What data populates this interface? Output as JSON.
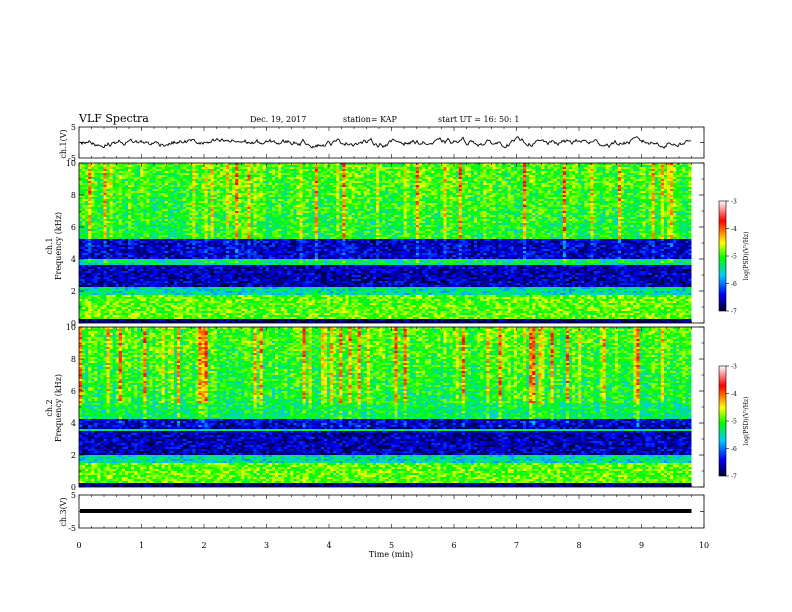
{
  "header": {
    "title": "VLF Spectra",
    "date": "Dec. 19, 2017",
    "station": "station= KAP",
    "start": "start  UT =   16: 50: 1"
  },
  "colorbar": {
    "label": "log(PSD)(V²/Hz)",
    "ticks": [
      "-3",
      "-4",
      "-5",
      "-6",
      "-7"
    ],
    "colors": [
      "#ffffff",
      "#ff0000",
      "#ffff00",
      "#00ff00",
      "#00c8ff",
      "#0000ff",
      "#000040"
    ]
  },
  "chart_data": [
    {
      "type": "line",
      "name": "ch1-waveform",
      "ylabel": "ch.1(V)",
      "ylim": [
        -5,
        5
      ],
      "yticks": [
        "5",
        "-5"
      ],
      "xlim": [
        0,
        10
      ],
      "description_values_mean": 0
    },
    {
      "type": "heatmap",
      "name": "ch1-spectrogram",
      "ylabel": "ch.1\nFrequency (kHz)",
      "ylabel_lines": [
        "ch.1",
        "Frequency (kHz)"
      ],
      "ylim": [
        0,
        10
      ],
      "yticks": [
        "0",
        "2",
        "4",
        "6",
        "8",
        "10"
      ],
      "xlim": [
        0,
        9.8
      ],
      "zlim": [
        -7,
        -3
      ],
      "quiet_bands_khz": [
        [
          2.3,
          3.6
        ],
        [
          4.0,
          5.2
        ]
      ],
      "strong_bands_khz": [
        [
          0.2,
          1.8
        ]
      ]
    },
    {
      "type": "heatmap",
      "name": "ch2-spectrogram",
      "ylabel_lines": [
        "ch.2",
        "Frequency (kHz)"
      ],
      "ylim": [
        0,
        10
      ],
      "yticks": [
        "0",
        "2",
        "4",
        "6",
        "8",
        "10"
      ],
      "xlim": [
        0,
        9.8
      ],
      "zlim": [
        -7,
        -3
      ],
      "quiet_bands_khz": [
        [
          2.0,
          3.5
        ],
        [
          3.6,
          4.2
        ]
      ],
      "strong_bands_khz": [
        [
          0.2,
          1.5
        ]
      ]
    },
    {
      "type": "line",
      "name": "ch3-waveform",
      "ylabel": "ch.3(V)",
      "ylim": [
        -5,
        5
      ],
      "yticks": [
        "5",
        "-5"
      ],
      "xlim": [
        0,
        10
      ],
      "level": 0
    }
  ],
  "xaxis": {
    "label": "Time  (min)",
    "ticks": [
      "0",
      "1",
      "2",
      "3",
      "4",
      "5",
      "6",
      "7",
      "8",
      "9",
      "10"
    ]
  }
}
